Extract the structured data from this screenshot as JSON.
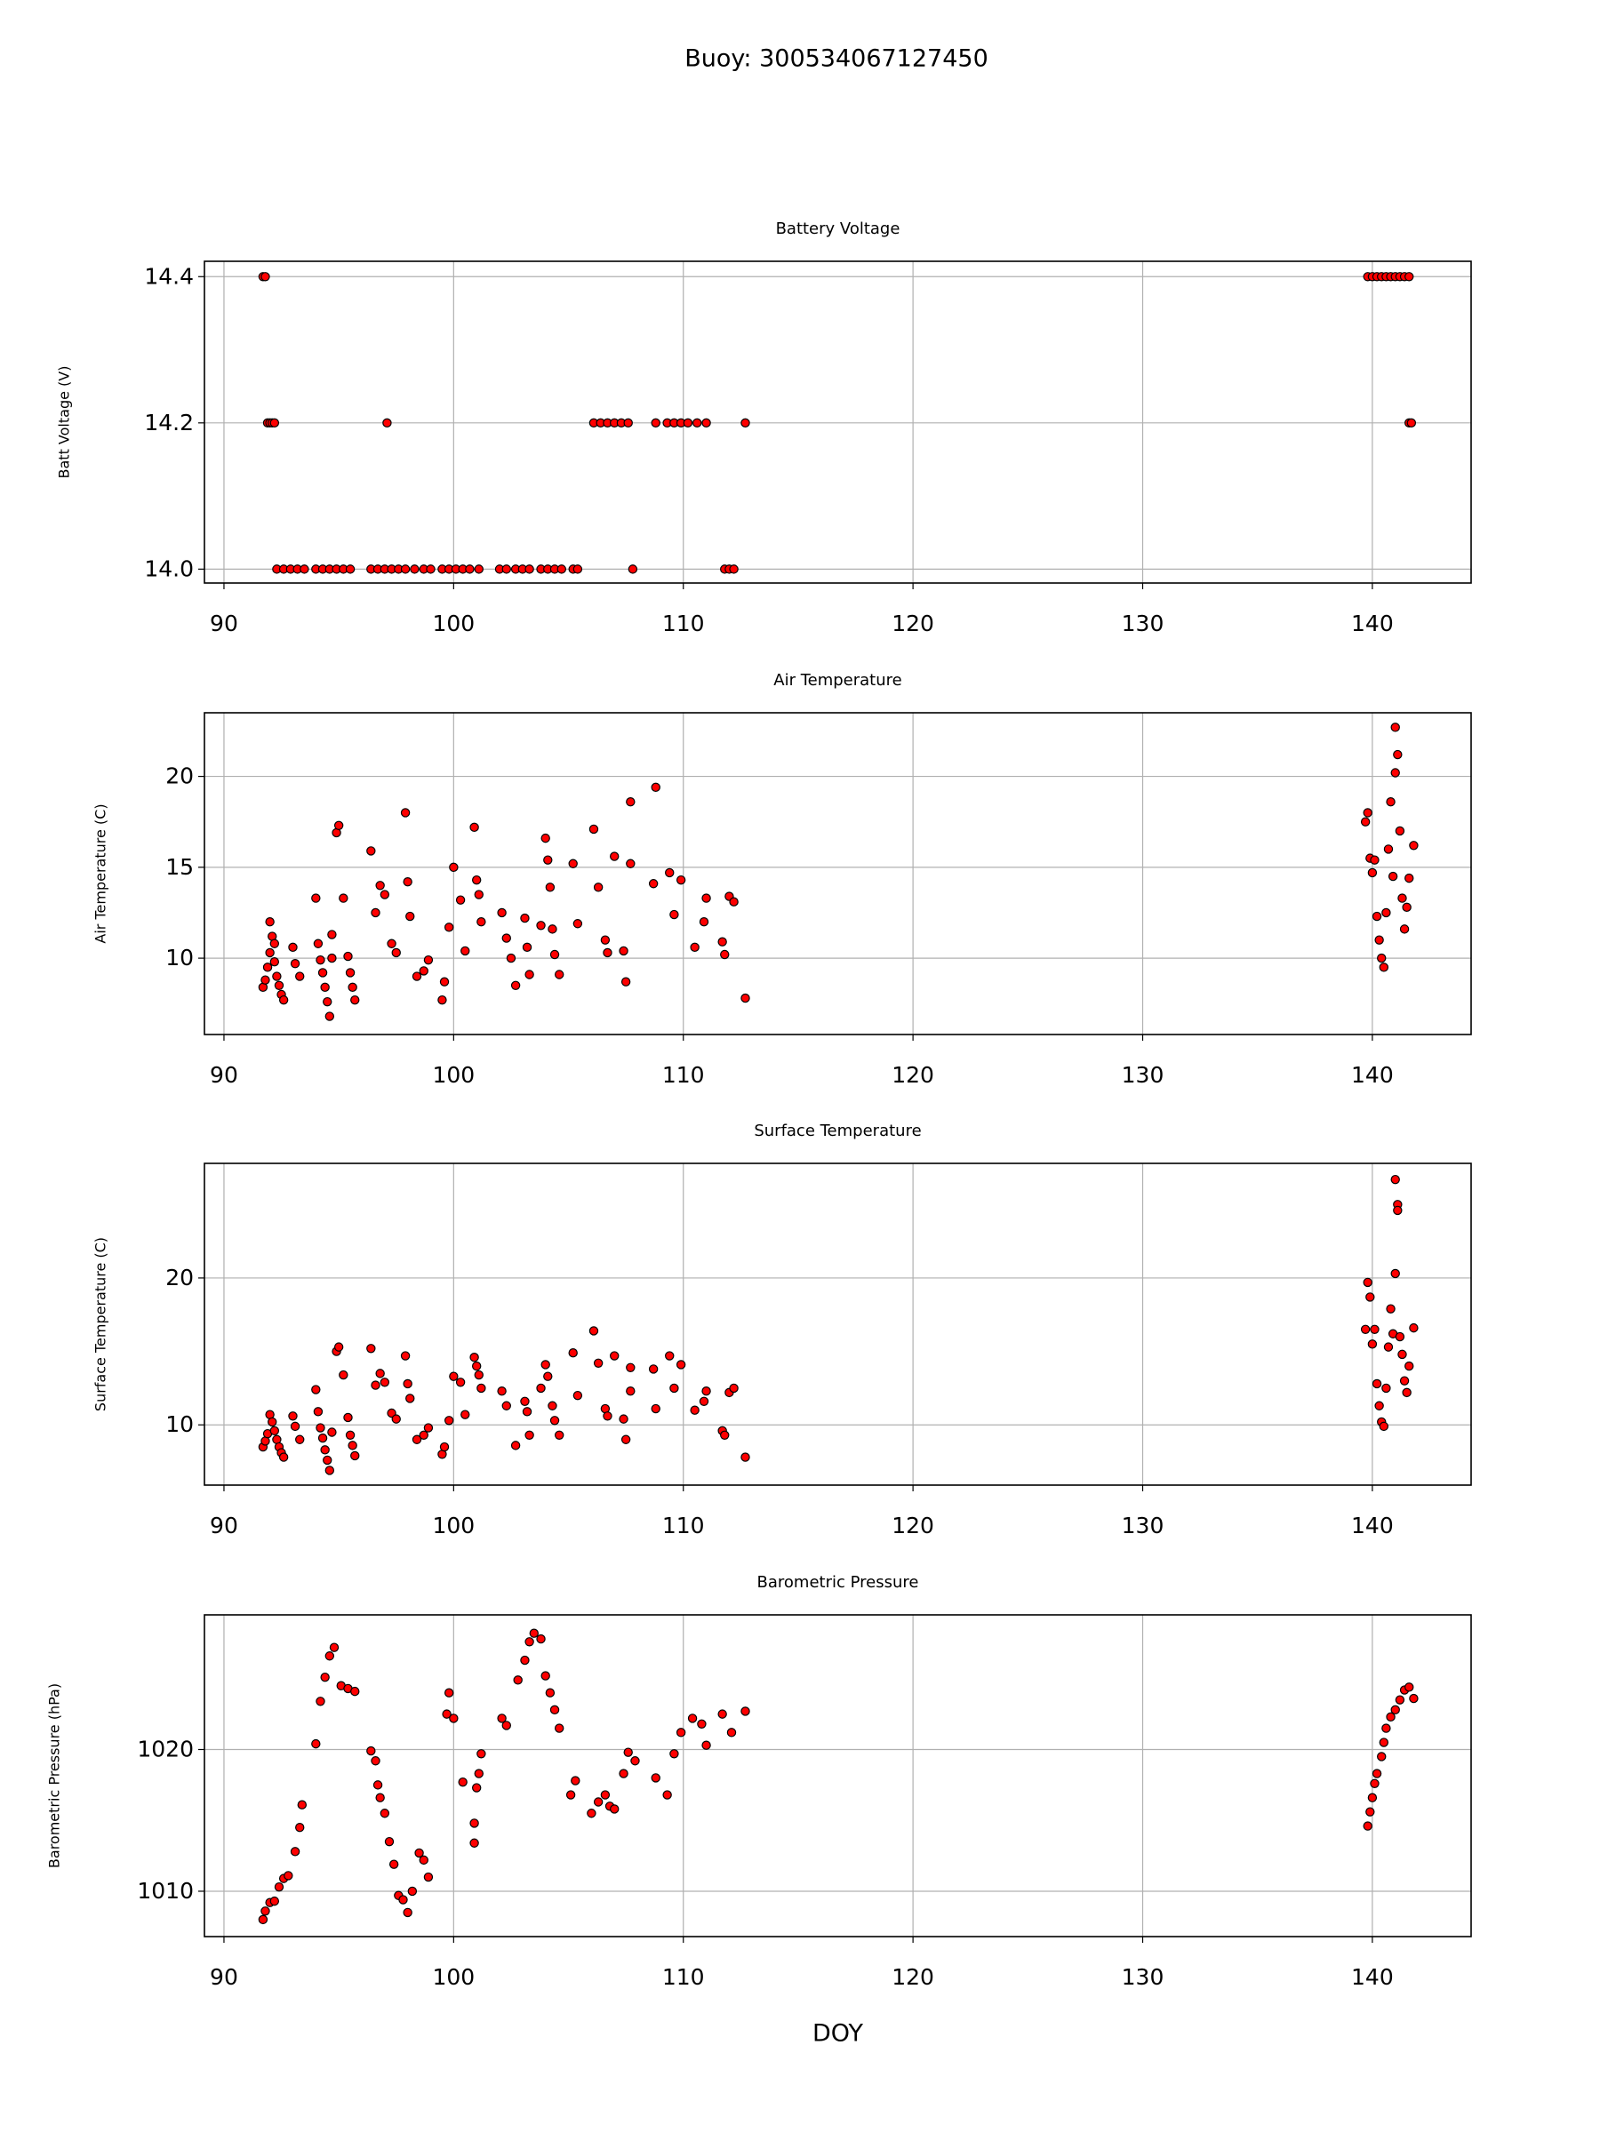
{
  "title": "Buoy: 300534067127450",
  "chart_data": [
    {
      "type": "scatter",
      "title": "Battery Voltage",
      "ylabel": "Batt Voltage (V)",
      "color": "#ff0000",
      "edgecolor": "#000000",
      "grid": true,
      "xlim": [
        89.15,
        144.3
      ],
      "xticks": [
        90,
        100,
        110,
        120,
        130,
        140
      ],
      "ylim": [
        13.981,
        14.421
      ],
      "yticks": [
        {
          "value": 14,
          "label": "14.0"
        },
        14.2,
        14.4
      ],
      "x": [
        91.7,
        91.8,
        139.8,
        140.0,
        140.2,
        140.4,
        140.6,
        140.8,
        141.0,
        141.2,
        141.4,
        141.6,
        91.9,
        92.0,
        92.1,
        92.2,
        97.1,
        106.1,
        106.4,
        106.7,
        107.0,
        107.3,
        107.6,
        108.8,
        109.3,
        109.6,
        109.9,
        110.2,
        110.6,
        111.0,
        112.7,
        141.6,
        141.7,
        92.3,
        92.6,
        92.9,
        93.2,
        93.5,
        94.0,
        94.3,
        94.6,
        94.9,
        95.2,
        95.5,
        96.4,
        96.7,
        97.0,
        97.3,
        97.6,
        97.9,
        98.3,
        98.7,
        99.0,
        99.5,
        99.8,
        100.1,
        100.4,
        100.7,
        101.1,
        102.0,
        102.3,
        102.7,
        103.0,
        103.3,
        103.8,
        104.1,
        104.4,
        104.7,
        105.2,
        105.4,
        107.8,
        111.8,
        112.0,
        112.2
      ],
      "values": [
        14.4,
        14.4,
        14.4,
        14.4,
        14.4,
        14.4,
        14.4,
        14.4,
        14.4,
        14.4,
        14.4,
        14.4,
        14.2,
        14.2,
        14.2,
        14.2,
        14.2,
        14.2,
        14.2,
        14.2,
        14.2,
        14.2,
        14.2,
        14.2,
        14.2,
        14.2,
        14.2,
        14.2,
        14.2,
        14.2,
        14.2,
        14.2,
        14.2,
        14.0,
        14.0,
        14.0,
        14.0,
        14.0,
        14.0,
        14.0,
        14.0,
        14.0,
        14.0,
        14.0,
        14.0,
        14.0,
        14.0,
        14.0,
        14.0,
        14.0,
        14.0,
        14.0,
        14.0,
        14.0,
        14.0,
        14.0,
        14.0,
        14.0,
        14.0,
        14.0,
        14.0,
        14.0,
        14.0,
        14.0,
        14.0,
        14.0,
        14.0,
        14.0,
        14.0,
        14.0,
        14.0,
        14.0,
        14.0,
        14.0
      ]
    },
    {
      "type": "scatter",
      "title": "Air Temperature",
      "ylabel": "Air Temperature (C)",
      "color": "#ff0000",
      "edgecolor": "#000000",
      "grid": true,
      "xlim": [
        89.15,
        144.3
      ],
      "xticks": [
        90,
        100,
        110,
        120,
        130,
        140
      ],
      "ylim": [
        5.8,
        23.5
      ],
      "yticks": [
        10,
        15,
        20
      ],
      "x": [
        91.7,
        91.8,
        91.9,
        92.0,
        92.0,
        92.1,
        92.2,
        92.2,
        92.3,
        92.4,
        92.5,
        92.6,
        93.0,
        93.1,
        93.3,
        94.0,
        94.1,
        94.2,
        94.3,
        94.4,
        94.5,
        94.6,
        94.7,
        94.7,
        94.9,
        95.0,
        95.2,
        95.4,
        95.5,
        95.6,
        95.7,
        96.4,
        96.6,
        96.8,
        97.0,
        97.3,
        97.5,
        97.9,
        98.0,
        98.1,
        98.4,
        98.7,
        98.9,
        99.5,
        99.6,
        99.8,
        100.0,
        100.3,
        100.5,
        100.9,
        101.0,
        101.1,
        101.2,
        102.1,
        102.3,
        102.5,
        102.7,
        103.1,
        103.2,
        103.3,
        103.8,
        104.0,
        104.1,
        104.2,
        104.3,
        104.4,
        104.6,
        105.2,
        105.4,
        106.1,
        106.3,
        106.6,
        106.7,
        107.0,
        107.4,
        107.5,
        107.7,
        107.7,
        108.7,
        108.8,
        109.4,
        109.6,
        109.9,
        110.5,
        110.9,
        111.0,
        111.7,
        111.8,
        112.0,
        112.2,
        112.7,
        139.7,
        139.8,
        139.9,
        140.0,
        140.1,
        140.2,
        140.3,
        140.4,
        140.5,
        140.6,
        140.7,
        140.8,
        140.9,
        141.0,
        141.1,
        141.0,
        141.2,
        141.3,
        141.4,
        141.5,
        141.6,
        141.8
      ],
      "values": [
        8.4,
        8.8,
        9.5,
        10.3,
        12.0,
        11.2,
        10.8,
        9.8,
        9.0,
        8.5,
        8.0,
        7.7,
        10.6,
        9.7,
        9.0,
        13.3,
        10.8,
        9.9,
        9.2,
        8.4,
        7.6,
        6.8,
        10.0,
        11.3,
        16.9,
        17.3,
        13.3,
        10.1,
        9.2,
        8.4,
        7.7,
        15.9,
        12.5,
        14.0,
        13.5,
        10.8,
        10.3,
        18.0,
        14.2,
        12.3,
        9.0,
        9.3,
        9.9,
        7.7,
        8.7,
        11.7,
        15.0,
        13.2,
        10.4,
        17.2,
        14.3,
        13.5,
        12.0,
        12.5,
        11.1,
        10.0,
        8.5,
        12.2,
        10.6,
        9.1,
        11.8,
        16.6,
        15.4,
        13.9,
        11.6,
        10.2,
        9.1,
        15.2,
        11.9,
        17.1,
        13.9,
        11.0,
        10.3,
        15.6,
        10.4,
        8.7,
        18.6,
        15.2,
        14.1,
        19.4,
        14.7,
        12.4,
        14.3,
        10.6,
        12.0,
        13.3,
        10.9,
        10.2,
        13.4,
        13.1,
        7.8,
        17.5,
        18.0,
        15.5,
        14.7,
        15.4,
        12.3,
        11.0,
        10.0,
        9.5,
        12.5,
        16.0,
        18.6,
        14.5,
        20.2,
        21.2,
        22.7,
        17.0,
        13.3,
        11.6,
        12.8,
        14.4,
        16.2
      ]
    },
    {
      "type": "scatter",
      "title": "Surface Temperature",
      "ylabel": "Surface Temperature (C)",
      "color": "#ff0000",
      "edgecolor": "#000000",
      "grid": true,
      "xlim": [
        89.15,
        144.3
      ],
      "xticks": [
        90,
        100,
        110,
        120,
        130,
        140
      ],
      "ylim": [
        5.9,
        27.8
      ],
      "yticks": [
        10,
        20
      ],
      "x": [
        91.7,
        91.8,
        91.9,
        92.0,
        92.1,
        92.2,
        92.3,
        92.4,
        92.5,
        92.6,
        93.0,
        93.1,
        93.3,
        94.0,
        94.1,
        94.2,
        94.3,
        94.4,
        94.5,
        94.6,
        94.7,
        94.9,
        95.0,
        95.2,
        95.4,
        95.5,
        95.6,
        95.7,
        96.4,
        96.6,
        96.8,
        97.0,
        97.3,
        97.5,
        97.9,
        98.0,
        98.1,
        98.4,
        98.7,
        98.9,
        99.5,
        99.6,
        99.8,
        100.0,
        100.3,
        100.5,
        100.9,
        101.0,
        101.1,
        101.2,
        102.1,
        102.3,
        102.7,
        103.1,
        103.2,
        103.3,
        103.8,
        104.0,
        104.1,
        104.3,
        104.4,
        104.6,
        105.2,
        105.4,
        106.1,
        106.3,
        106.6,
        106.7,
        107.0,
        107.4,
        107.5,
        107.7,
        107.7,
        108.7,
        108.8,
        109.4,
        109.6,
        109.9,
        110.5,
        110.9,
        111.0,
        111.7,
        111.8,
        112.0,
        112.2,
        112.7,
        139.7,
        139.8,
        139.9,
        140.0,
        140.1,
        140.2,
        140.3,
        140.4,
        140.5,
        140.6,
        140.7,
        140.8,
        140.9,
        141.0,
        141.1,
        141.0,
        141.1,
        141.2,
        141.3,
        141.4,
        141.5,
        141.6,
        141.8
      ],
      "values": [
        8.5,
        8.9,
        9.4,
        10.7,
        10.2,
        9.6,
        9.0,
        8.5,
        8.1,
        7.8,
        10.6,
        9.9,
        9.0,
        12.4,
        10.9,
        9.8,
        9.1,
        8.3,
        7.6,
        6.9,
        9.5,
        15.0,
        15.3,
        13.4,
        10.5,
        9.3,
        8.6,
        7.9,
        15.2,
        12.7,
        13.5,
        12.9,
        10.8,
        10.4,
        14.7,
        12.8,
        11.8,
        9.0,
        9.3,
        9.8,
        8.0,
        8.5,
        10.3,
        13.3,
        12.9,
        10.7,
        14.6,
        14.0,
        13.4,
        12.5,
        12.3,
        11.3,
        8.6,
        11.6,
        10.9,
        9.3,
        12.5,
        14.1,
        13.3,
        11.3,
        10.3,
        9.3,
        14.9,
        12.0,
        16.4,
        14.2,
        11.1,
        10.6,
        14.7,
        10.4,
        9.0,
        13.9,
        12.3,
        13.8,
        11.1,
        14.7,
        12.5,
        14.1,
        11.0,
        11.6,
        12.3,
        9.6,
        9.3,
        12.2,
        12.5,
        7.8,
        16.5,
        19.7,
        18.7,
        15.5,
        16.5,
        12.8,
        11.3,
        10.2,
        9.9,
        12.5,
        15.3,
        17.9,
        16.2,
        20.3,
        25.0,
        26.7,
        24.6,
        16.0,
        14.8,
        13.0,
        12.2,
        14.0,
        16.6
      ]
    },
    {
      "type": "scatter",
      "title": "Barometric Pressure",
      "ylabel": "Barometric Pressure (hPa)",
      "xlabel": "DOY",
      "color": "#ff0000",
      "edgecolor": "#000000",
      "grid": true,
      "xlim": [
        89.15,
        144.3
      ],
      "xticks": [
        90,
        100,
        110,
        120,
        130,
        140
      ],
      "ylim": [
        1006.8,
        1029.5
      ],
      "yticks": [
        1010,
        1020
      ],
      "x": [
        91.7,
        91.8,
        92.0,
        92.2,
        92.4,
        92.6,
        92.8,
        93.1,
        93.3,
        93.4,
        94.0,
        94.2,
        94.4,
        94.6,
        94.8,
        95.1,
        95.4,
        95.7,
        96.4,
        96.6,
        96.7,
        96.8,
        97.0,
        97.2,
        97.4,
        97.6,
        97.8,
        98.0,
        98.2,
        98.5,
        98.7,
        98.9,
        99.7,
        99.8,
        100.0,
        100.4,
        100.9,
        100.9,
        101.0,
        101.1,
        101.2,
        102.1,
        102.3,
        102.8,
        103.1,
        103.3,
        103.5,
        103.8,
        104.0,
        104.2,
        104.4,
        104.6,
        105.1,
        105.3,
        106.0,
        106.3,
        106.6,
        106.8,
        107.0,
        107.4,
        107.6,
        107.9,
        108.8,
        109.3,
        109.6,
        109.9,
        110.4,
        110.8,
        111.0,
        111.7,
        112.1,
        112.7,
        139.8,
        139.9,
        140.0,
        140.1,
        140.2,
        140.4,
        140.5,
        140.6,
        140.8,
        141.0,
        141.2,
        141.4,
        141.6,
        141.8
      ],
      "values": [
        1008,
        1008.6,
        1009.2,
        1009.3,
        1010.3,
        1010.9,
        1011.1,
        1012.8,
        1014.5,
        1016.1,
        1020.4,
        1023.4,
        1025.1,
        1026.6,
        1027.2,
        1024.5,
        1024.3,
        1024.1,
        1019.9,
        1019.2,
        1017.5,
        1016.6,
        1015.5,
        1013.5,
        1011.9,
        1009.7,
        1009.4,
        1008.5,
        1010,
        1012.7,
        1012.2,
        1011,
        1022.5,
        1024,
        1022.2,
        1017.7,
        1013.4,
        1014.8,
        1017.3,
        1018.3,
        1019.7,
        1022.2,
        1021.7,
        1024.9,
        1026.3,
        1027.6,
        1028.2,
        1027.8,
        1025.2,
        1024,
        1022.8,
        1021.5,
        1016.8,
        1017.8,
        1015.5,
        1016.3,
        1016.8,
        1016,
        1015.8,
        1018.3,
        1019.8,
        1019.2,
        1018,
        1016.8,
        1019.7,
        1021.2,
        1022.2,
        1021.8,
        1020.3,
        1022.5,
        1021.2,
        1022.7,
        1014.6,
        1015.6,
        1016.6,
        1017.6,
        1018.3,
        1019.5,
        1020.5,
        1021.5,
        1022.3,
        1022.8,
        1023.5,
        1024.2,
        1024.4,
        1023.6
      ]
    }
  ]
}
